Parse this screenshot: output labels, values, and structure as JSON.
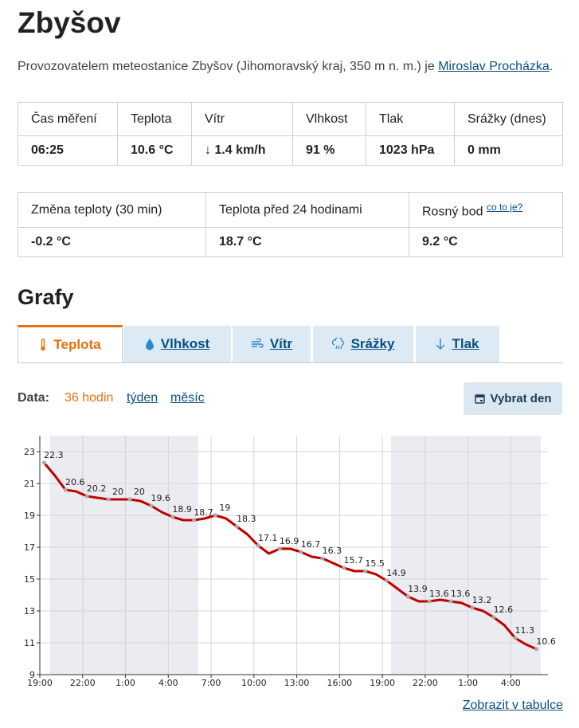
{
  "header": {
    "title": "Zbyšov"
  },
  "intro": {
    "text": "Provozovatelem meteostanice Zbyšov (Jihomoravský kraj, 350 m n. m.) je ",
    "link": "Miroslav Procházka",
    "end": "."
  },
  "table1": {
    "headers": [
      "Čas měření",
      "Teplota",
      "Vítr",
      "Vlhkost",
      "Tlak",
      "Srážky (dnes)"
    ],
    "values": [
      "06:25",
      "10.6 °C",
      "↓ 1.4 km/h",
      "91 %",
      "1023 hPa",
      "0 mm"
    ]
  },
  "table2": {
    "headers": [
      "Změna teploty (30 min)",
      "Teplota před 24 hodinami",
      "Rosný bod"
    ],
    "help_link": "co to je?",
    "values": [
      "-0.2 °C",
      "18.7 °C",
      "9.2 °C"
    ]
  },
  "section_title": "Grafy",
  "tabs": [
    "Teplota",
    "Vlhkost",
    "Vítr",
    "Srážky",
    "Tlak"
  ],
  "range": {
    "label": "Data:",
    "options": [
      "36 hodin",
      "týden",
      "měsíc"
    ],
    "button": "Vybrat den"
  },
  "table_link": "Zobrazit v tabulce",
  "chart_data": {
    "type": "line",
    "xlim": [
      0,
      35.6
    ],
    "xticks": [
      {
        "value": 0,
        "label": "19:00"
      },
      {
        "value": 3,
        "label": "22:00"
      },
      {
        "value": 6,
        "label": "1:00"
      },
      {
        "value": 9,
        "label": "4:00"
      },
      {
        "value": 12,
        "label": "7:00"
      },
      {
        "value": 15,
        "label": "10:00"
      },
      {
        "value": 18,
        "label": "13:00"
      },
      {
        "value": 21,
        "label": "16:00"
      },
      {
        "value": 24,
        "label": "19:00"
      },
      {
        "value": 27,
        "label": "22:00"
      },
      {
        "value": 30,
        "label": "1:00"
      },
      {
        "value": 33,
        "label": "4:00"
      }
    ],
    "ylim": [
      9,
      24
    ],
    "yticks": [
      9,
      11,
      13,
      15,
      17,
      19,
      21,
      23
    ],
    "grid": true,
    "shaded_ranges": [
      [
        0.7,
        11.1
      ],
      [
        24.6,
        35.1
      ]
    ],
    "label_every": 2,
    "x": [
      0.3,
      1.05,
      1.8,
      2.55,
      3.3,
      4.05,
      4.8,
      5.55,
      6.3,
      7.05,
      7.8,
      8.55,
      9.3,
      10.05,
      10.8,
      11.55,
      12.3,
      13.05,
      13.8,
      14.55,
      15.3,
      16.05,
      16.8,
      17.55,
      18.3,
      19.05,
      19.8,
      20.55,
      21.3,
      22.05,
      22.8,
      23.55,
      24.3,
      25.05,
      25.8,
      26.55,
      27.3,
      28.05,
      28.8,
      29.55,
      30.3,
      31.05,
      31.8,
      32.55,
      33.3,
      34.05,
      34.8
    ],
    "series": [
      {
        "name": "Teplota",
        "color": "#c00000",
        "values": [
          22.3,
          21.5,
          20.6,
          20.5,
          20.2,
          20.1,
          20,
          20,
          20,
          19.9,
          19.6,
          19.2,
          18.9,
          18.7,
          18.7,
          18.8,
          19,
          18.8,
          18.3,
          17.8,
          17.1,
          16.6,
          16.9,
          16.9,
          16.7,
          16.4,
          16.3,
          16,
          15.7,
          15.5,
          15.5,
          15.3,
          14.9,
          14.4,
          13.9,
          13.6,
          13.6,
          13.7,
          13.6,
          13.5,
          13.2,
          13,
          12.6,
          12.1,
          11.3,
          10.9,
          10.6
        ]
      }
    ]
  }
}
